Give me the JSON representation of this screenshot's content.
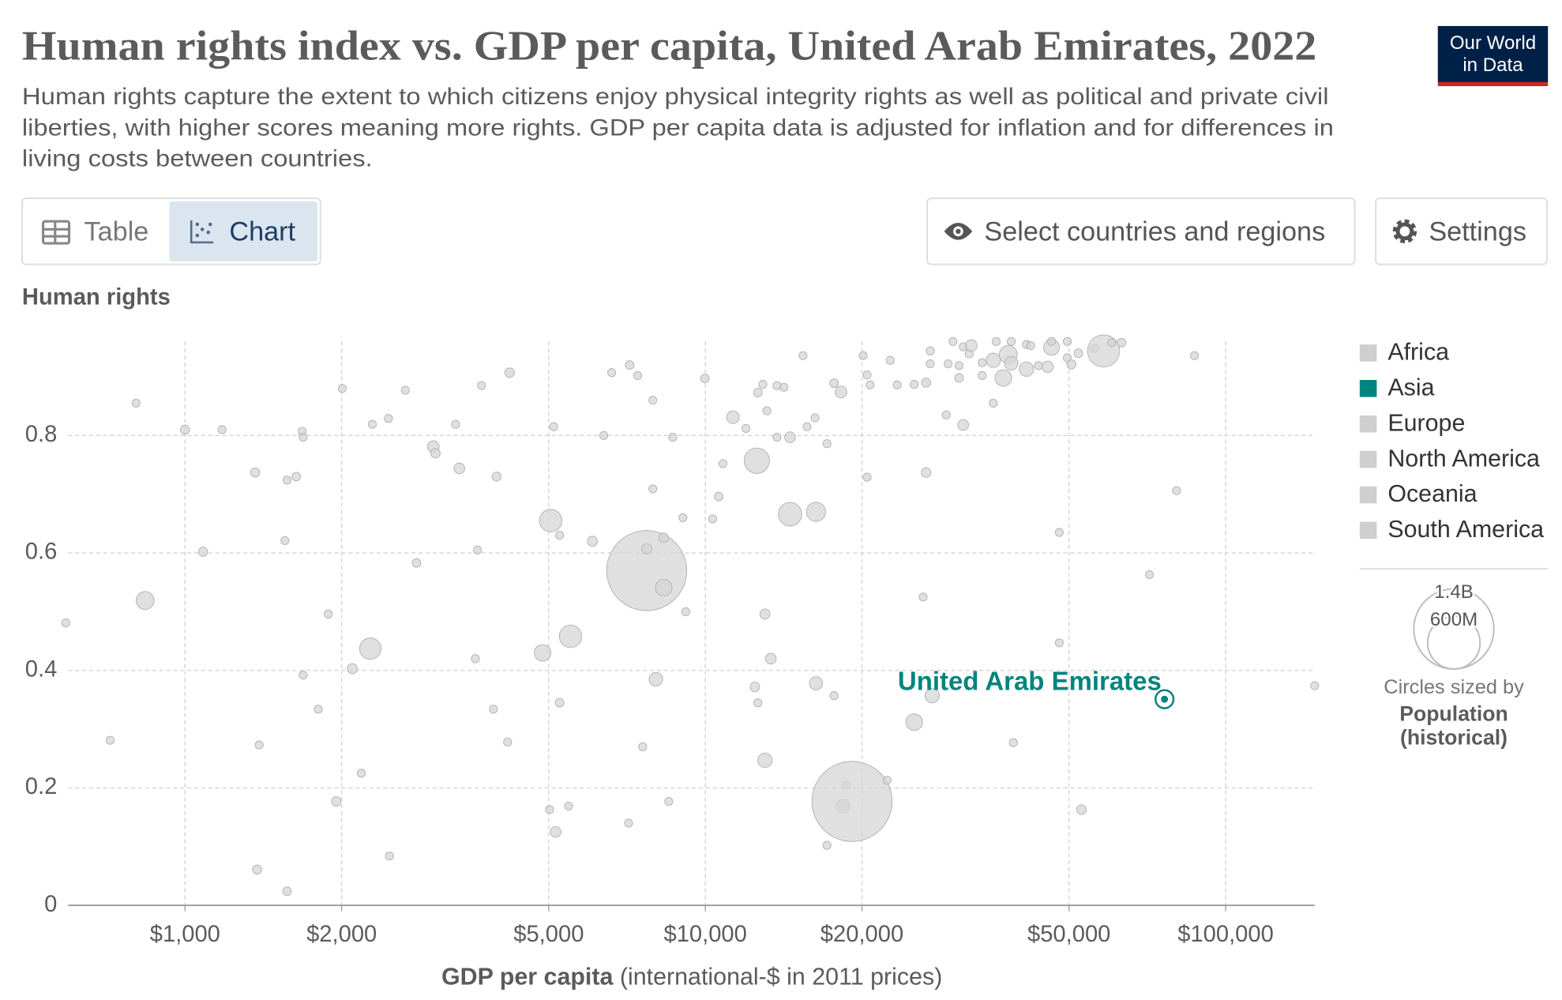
{
  "chart_data": {
    "type": "scatter",
    "title": "Human rights index vs. GDP per capita, United Arab Emirates, 2022",
    "subtitle": [
      "Human rights capture the extent to which citizens enjoy physical integrity rights as well as political and private civil",
      "liberties, with higher scores meaning more rights. GDP per capita data is adjusted for inflation and for differences in",
      "living costs between countries."
    ],
    "logo": [
      "Our World",
      "in Data"
    ],
    "controls": {
      "tabs": [
        "Table",
        "Chart"
      ],
      "buttons": [
        "Select countries and regions",
        "Settings"
      ]
    },
    "y_label": "Human rights",
    "x_label": "GDP per capita",
    "x_label_unit": "(international-$ in 2011 prices)",
    "log_x": true,
    "grid": true,
    "xlim": [
      596,
      148300
    ],
    "ylim": [
      0,
      0.96
    ],
    "xticks": [
      {
        "value": 1000,
        "label": "$1,000"
      },
      {
        "value": 2000,
        "label": "$2,000"
      },
      {
        "value": 5000,
        "label": "$5,000"
      },
      {
        "value": 10000,
        "label": "$10,000"
      },
      {
        "value": 20000,
        "label": "$20,000"
      },
      {
        "value": 50000,
        "label": "$50,000"
      },
      {
        "value": 100000,
        "label": "$100,000"
      }
    ],
    "yticks": [
      0,
      0.2,
      0.4,
      0.6,
      0.8
    ],
    "point_color": "#d6d6d6",
    "points": {
      "x": [
        590,
        718,
        805,
        838,
        1000,
        1083,
        1178,
        1364,
        1376,
        1388,
        1571,
        1571,
        1636,
        1556,
        1679,
        1686,
        1686,
        1803,
        1884,
        1953,
        2005,
        2096,
        2182,
        2270,
        2291,
        2460,
        2471,
        2651,
        2785,
        3000,
        3028,
        3310,
        3368,
        3614,
        3648,
        3714,
        3916,
        3970,
        4168,
        4206,
        4867,
        5043,
        5020,
        5110,
        5155,
        5247,
        5247,
        5461,
        5508,
        6067,
        6378,
        6608,
        7122,
        7155,
        7413,
        7579,
        7715,
        7715,
        7926,
        7926,
        8034,
        8318,
        8318,
        8506,
        8658,
        9055,
        9169,
        9980,
        10330,
        10610,
        10810,
        11300,
        11970,
        12450,
        12560,
        12620,
        12900,
        12620,
        13020,
        13020,
        13130,
        13360,
        13730,
        13730,
        14160,
        14550,
        14550,
        15410,
        15680,
        16250,
        16320,
        16320,
        17130,
        17680,
        17130,
        17680,
        18230,
        18390,
        18640,
        19140,
        20100,
        20460,
        20460,
        20730,
        22360,
        22660,
        23370,
        25200,
        25200,
        26220,
        26570,
        26570,
        27060,
        27290,
        27060,
        29040,
        29290,
        29920,
        30740,
        30740,
        31310,
        31310,
        32140,
        32440,
        34050,
        34050,
        35760,
        35760,
        36230,
        37380,
        38220,
        38720,
        38720,
        39080,
        41420,
        41420,
        42190,
        43680,
        45500,
        46280,
        46280,
        47900,
        47900,
        49620,
        49620,
        50530,
        52130,
        52830,
        55970,
        58260,
        60390,
        63100,
        71400,
        80500,
        87100,
        148300
      ],
      "values": [
        0.481,
        0.281,
        0.855,
        0.519,
        0.81,
        0.602,
        0.81,
        0.737,
        0.061,
        0.273,
        0.024,
        0.724,
        0.73,
        0.621,
        0.807,
        0.797,
        0.392,
        0.334,
        0.496,
        0.177,
        0.88,
        0.403,
        0.225,
        0.437,
        0.819,
        0.829,
        0.084,
        0.877,
        0.583,
        0.781,
        0.77,
        0.819,
        0.744,
        0.42,
        0.605,
        0.885,
        0.334,
        0.73,
        0.278,
        0.907,
        0.43,
        0.655,
        0.163,
        0.815,
        0.125,
        0.345,
        0.63,
        0.169,
        0.458,
        0.62,
        0.8,
        0.907,
        0.14,
        0.92,
        0.902,
        0.27,
        0.57,
        0.607,
        0.709,
        0.86,
        0.385,
        0.541,
        0.626,
        0.177,
        0.797,
        0.66,
        0.5,
        0.897,
        0.658,
        0.696,
        0.752,
        0.831,
        0.812,
        0.372,
        0.757,
        0.345,
        0.887,
        0.873,
        0.496,
        0.247,
        0.842,
        0.42,
        0.885,
        0.797,
        0.882,
        0.797,
        0.666,
        0.936,
        0.815,
        0.83,
        0.67,
        0.378,
        0.786,
        0.357,
        0.102,
        0.889,
        0.874,
        0.169,
        0.205,
        0.177,
        0.936,
        0.903,
        0.729,
        0.886,
        0.213,
        0.928,
        0.886,
        0.312,
        0.887,
        0.525,
        0.737,
        0.89,
        0.944,
        0.357,
        0.922,
        0.835,
        0.922,
        0.96,
        0.919,
        0.898,
        0.818,
        0.951,
        0.939,
        0.953,
        0.924,
        0.902,
        0.855,
        0.928,
        0.96,
        0.898,
        0.938,
        0.923,
        0.96,
        0.277,
        0.955,
        0.913,
        0.953,
        0.919,
        0.917,
        0.95,
        0.96,
        0.447,
        0.635,
        0.932,
        0.96,
        0.921,
        0.94,
        0.163,
        0.948,
        0.944,
        0.958,
        0.958,
        0.563,
        0.706,
        0.936,
        0.374
      ],
      "sizes": [
        14000000,
        14000000,
        14000000,
        70000000,
        18000000,
        18000000,
        14000000,
        18000000,
        18000000,
        14000000,
        16000000,
        14000000,
        16000000,
        14000000,
        14000000,
        14000000,
        14000000,
        14000000,
        14000000,
        20000000,
        14000000,
        22000000,
        14000000,
        100000000,
        14000000,
        14000000,
        14000000,
        14000000,
        16000000,
        30000000,
        20000000,
        14000000,
        25000000,
        14000000,
        14000000,
        14000000,
        14000000,
        18000000,
        14000000,
        20000000,
        60000000,
        110000000,
        14000000,
        14000000,
        25000000,
        16000000,
        14000000,
        14000000,
        110000000,
        22000000,
        14000000,
        14000000,
        14000000,
        16000000,
        14000000,
        14000000,
        1400000000,
        22000000,
        14000000,
        14000000,
        40000000,
        60000000,
        20000000,
        14000000,
        14000000,
        14000000,
        14000000,
        16000000,
        14000000,
        16000000,
        14000000,
        35000000,
        14000000,
        20000000,
        140000000,
        14000000,
        14000000,
        16000000,
        22000000,
        45000000,
        14000000,
        25000000,
        14000000,
        14000000,
        14000000,
        25000000,
        120000000,
        14000000,
        14000000,
        14000000,
        80000000,
        38000000,
        14000000,
        14000000,
        14000000,
        16000000,
        30000000,
        40000000,
        14000000,
        1400000000,
        14000000,
        14000000,
        14000000,
        14000000,
        14000000,
        14000000,
        14000000,
        60000000,
        14000000,
        14000000,
        20000000,
        18000000,
        14000000,
        45000000,
        14000000,
        14000000,
        14000000,
        14000000,
        14000000,
        16000000,
        25000000,
        14000000,
        14000000,
        30000000,
        14000000,
        14000000,
        14000000,
        45000000,
        14000000,
        60000000,
        70000000,
        40000000,
        14000000,
        14000000,
        14000000,
        45000000,
        14000000,
        14000000,
        28000000,
        55000000,
        14000000,
        14000000,
        14000000,
        14000000,
        14000000,
        18000000,
        16000000,
        20000000,
        14000000,
        224000000,
        14000000,
        16000000,
        14000000,
        14000000,
        14000000,
        14000000
      ]
    },
    "highlight": {
      "label": "United Arab Emirates",
      "x": 76300,
      "value": 0.351,
      "size": 9400000,
      "color": "#00847e"
    },
    "legend": [
      {
        "name": "Africa",
        "color": "#cfcfcf"
      },
      {
        "name": "Asia",
        "color": "#00847e"
      },
      {
        "name": "Europe",
        "color": "#cfcfcf"
      },
      {
        "name": "North America",
        "color": "#cfcfcf"
      },
      {
        "name": "Oceania",
        "color": "#cfcfcf"
      },
      {
        "name": "South America",
        "color": "#cfcfcf"
      }
    ],
    "size_legend": {
      "values": [
        {
          "value": 1400000000,
          "label": "1.4B"
        },
        {
          "value": 600000000,
          "label": "600M"
        }
      ],
      "note": "Circles sized by",
      "variable": [
        "Population",
        "(historical)"
      ]
    }
  }
}
